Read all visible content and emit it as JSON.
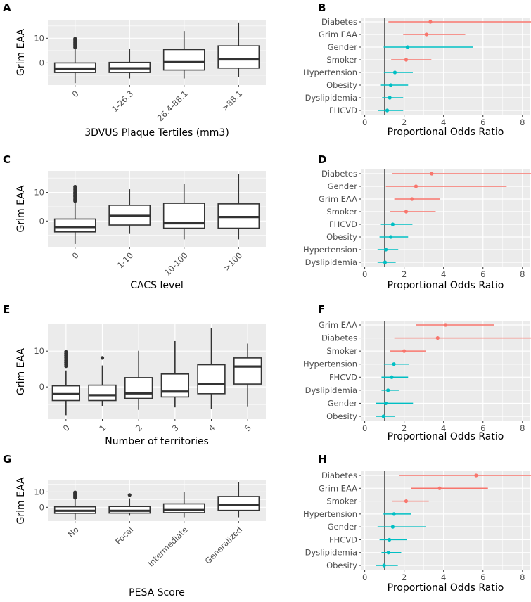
{
  "colors": {
    "significant": "#F8766D",
    "nonsignificant": "#00BFC4",
    "panel_bg": "#EBEBEB",
    "box_stroke": "#333333",
    "reference_line": "#555555"
  },
  "chart_data": [
    {
      "panel": "A",
      "type": "box",
      "ylabel": "Grim EAA",
      "xlabel": "3DVUS Plaque Tertiles (mm3)",
      "yticks": [
        0,
        10
      ],
      "ylim": [
        -9,
        17.5
      ],
      "label_rotation": 45,
      "categories": [
        "0",
        "1-26.3",
        "26.4-88.1",
        ">88.1"
      ],
      "boxes": [
        {
          "min": -8.2,
          "q1": -3.9,
          "median": -2.3,
          "q3": 0,
          "max": 5.7,
          "outliers": [
            6.3,
            6.8,
            7.3,
            7.8,
            8.3,
            8.8,
            9.3,
            9.8
          ]
        },
        {
          "min": -6.3,
          "q1": -3.9,
          "median": -2.2,
          "q3": 0.2,
          "max": 5.7,
          "outliers": []
        },
        {
          "min": -6.3,
          "q1": -2.9,
          "median": 0.3,
          "q3": 5.4,
          "max": 12.9,
          "outliers": []
        },
        {
          "min": -5.8,
          "q1": -2.1,
          "median": 1.4,
          "q3": 6.9,
          "max": 16.4,
          "outliers": []
        }
      ]
    },
    {
      "panel": "B",
      "type": "forest",
      "xlabel": "Proportional Odds Ratio",
      "xticks": [
        0,
        2,
        4,
        6,
        8
      ],
      "xlim": [
        -0.2,
        8.4
      ],
      "reference": 1,
      "rows": [
        {
          "label": "Diabetes",
          "or": 3.33,
          "lo": 1.2,
          "hi": 9.5,
          "sig": true
        },
        {
          "label": "Grim EAA",
          "or": 3.13,
          "lo": 1.95,
          "hi": 5.1,
          "sig": true
        },
        {
          "label": "Gender",
          "or": 2.17,
          "lo": 0.96,
          "hi": 5.48,
          "sig": false
        },
        {
          "label": "Smoker",
          "or": 2.1,
          "lo": 1.34,
          "hi": 3.38,
          "sig": true
        },
        {
          "label": "Hypertension",
          "or": 1.53,
          "lo": 0.97,
          "hi": 2.44,
          "sig": false
        },
        {
          "label": "Obesity",
          "or": 1.32,
          "lo": 0.82,
          "hi": 2.2,
          "sig": false
        },
        {
          "label": "Dyslipidemia",
          "or": 1.27,
          "lo": 0.88,
          "hi": 1.95,
          "sig": false
        },
        {
          "label": "FHCVD",
          "or": 1.14,
          "lo": 0.66,
          "hi": 1.95,
          "sig": false
        }
      ]
    },
    {
      "panel": "C",
      "type": "box",
      "ylabel": "Grim EAA",
      "xlabel": "CACS level",
      "yticks": [
        0,
        10
      ],
      "ylim": [
        -9,
        17.5
      ],
      "label_rotation": 45,
      "categories": [
        "0",
        "1-10",
        "10-100",
        ">100"
      ],
      "boxes": [
        {
          "min": -8.0,
          "q1": -3.8,
          "median": -2.1,
          "q3": 0.7,
          "max": 6.4,
          "outliers": [
            7.0,
            7.5,
            8.0,
            8.5,
            9.0,
            9.5,
            10.0,
            10.5,
            11.0,
            11.5,
            12.0
          ]
        },
        {
          "min": -4.5,
          "q1": -1.4,
          "median": 1.8,
          "q3": 5.5,
          "max": 11.1,
          "outliers": []
        },
        {
          "min": -6.4,
          "q1": -2.5,
          "median": -0.8,
          "q3": 6.2,
          "max": 13.0,
          "outliers": []
        },
        {
          "min": -6.4,
          "q1": -2.5,
          "median": 1.4,
          "q3": 6.0,
          "max": 16.5,
          "outliers": []
        }
      ]
    },
    {
      "panel": "D",
      "type": "forest",
      "xlabel": "Proportional Odds Ratio",
      "xticks": [
        0,
        2,
        4,
        6,
        8
      ],
      "xlim": [
        -0.2,
        8.4
      ],
      "reference": 1,
      "rows": [
        {
          "label": "Diabetes",
          "or": 3.4,
          "lo": 1.4,
          "hi": 9.5,
          "sig": true
        },
        {
          "label": "Gender",
          "or": 2.6,
          "lo": 1.07,
          "hi": 7.2,
          "sig": true
        },
        {
          "label": "Grim EAA",
          "or": 2.4,
          "lo": 1.5,
          "hi": 3.8,
          "sig": true
        },
        {
          "label": "Smoker",
          "or": 2.1,
          "lo": 1.3,
          "hi": 3.6,
          "sig": true
        },
        {
          "label": "FHCVD",
          "or": 1.42,
          "lo": 0.82,
          "hi": 2.42,
          "sig": false
        },
        {
          "label": "Obesity",
          "or": 1.32,
          "lo": 0.75,
          "hi": 2.2,
          "sig": false
        },
        {
          "label": "Hypertension",
          "or": 1.07,
          "lo": 0.65,
          "hi": 1.7,
          "sig": false
        },
        {
          "label": "Dyslipidemia",
          "or": 1.03,
          "lo": 0.65,
          "hi": 1.57,
          "sig": false
        }
      ]
    },
    {
      "panel": "E",
      "type": "box",
      "ylabel": "Grim EAA",
      "xlabel": "Number of territories",
      "yticks": [
        0,
        10
      ],
      "ylim": [
        -9,
        17.5
      ],
      "label_rotation": 45,
      "categories": [
        "0",
        "1",
        "2",
        "3",
        "4",
        "5"
      ],
      "boxes": [
        {
          "min": -7.9,
          "q1": -3.8,
          "median": -2.0,
          "q3": 0.3,
          "max": 4.6,
          "outliers": [
            5.8,
            6.3,
            6.8,
            7.3,
            7.8,
            8.3,
            8.8,
            9.3,
            9.8
          ]
        },
        {
          "min": -5.4,
          "q1": -3.8,
          "median": -2.3,
          "q3": 0.5,
          "max": 6.0,
          "outliers": [
            8.1
          ]
        },
        {
          "min": -6.4,
          "q1": -3.2,
          "median": -1.8,
          "q3": 2.6,
          "max": 10.1,
          "outliers": []
        },
        {
          "min": -5.7,
          "q1": -2.8,
          "median": -1.3,
          "q3": 3.6,
          "max": 12.8,
          "outliers": []
        },
        {
          "min": -6.2,
          "q1": -1.9,
          "median": 0.8,
          "q3": 6.2,
          "max": 16.4,
          "outliers": []
        },
        {
          "min": -5.6,
          "q1": 0.8,
          "median": 5.7,
          "q3": 8.1,
          "max": 12.1,
          "outliers": []
        }
      ]
    },
    {
      "panel": "F",
      "type": "forest",
      "xlabel": "Proportional Odds Ratio",
      "xticks": [
        0,
        2,
        4,
        6,
        8
      ],
      "xlim": [
        -0.2,
        8.4
      ],
      "reference": 1,
      "rows": [
        {
          "label": "Grim EAA",
          "or": 4.1,
          "lo": 2.6,
          "hi": 6.55,
          "sig": true
        },
        {
          "label": "Diabetes",
          "or": 3.7,
          "lo": 1.5,
          "hi": 9.5,
          "sig": true
        },
        {
          "label": "Smoker",
          "or": 2.0,
          "lo": 1.3,
          "hi": 3.1,
          "sig": true
        },
        {
          "label": "Hypertension",
          "or": 1.48,
          "lo": 0.97,
          "hi": 2.25,
          "sig": false
        },
        {
          "label": "FHCVD",
          "or": 1.37,
          "lo": 0.85,
          "hi": 2.2,
          "sig": false
        },
        {
          "label": "Dyslipidemia",
          "or": 1.18,
          "lo": 0.85,
          "hi": 1.75,
          "sig": false
        },
        {
          "label": "Gender",
          "or": 1.07,
          "lo": 0.55,
          "hi": 2.45,
          "sig": false
        },
        {
          "label": "Obesity",
          "or": 0.95,
          "lo": 0.55,
          "hi": 1.55,
          "sig": false
        }
      ]
    },
    {
      "panel": "G",
      "type": "box",
      "ylabel": "Grim EAA",
      "xlabel": "PESA Score",
      "yticks": [
        0,
        10
      ],
      "ylim": [
        -9,
        17.5
      ],
      "label_rotation": 45,
      "categories": [
        "No",
        "Focal",
        "Intermediate",
        "Generalized"
      ],
      "boxes": [
        {
          "min": -8.0,
          "q1": -3.9,
          "median": -2.3,
          "q3": 0.3,
          "max": 5.6,
          "outliers": [
            6.2,
            6.7,
            7.2,
            7.7,
            8.2,
            8.7,
            9.2,
            9.7
          ]
        },
        {
          "min": -5.5,
          "q1": -3.8,
          "median": -2.3,
          "q3": 0.5,
          "max": 5.8,
          "outliers": [
            8.0
          ]
        },
        {
          "min": -6.5,
          "q1": -3.5,
          "median": -1.8,
          "q3": 2.2,
          "max": 10.0,
          "outliers": []
        },
        {
          "min": -6.5,
          "q1": -2.0,
          "median": 1.4,
          "q3": 7.0,
          "max": 16.4,
          "outliers": []
        }
      ]
    },
    {
      "panel": "H",
      "type": "forest",
      "xlabel": "Proportional Odds Ratio",
      "xticks": [
        0,
        2,
        4,
        6,
        8
      ],
      "xlim": [
        -0.2,
        8.4
      ],
      "reference": 1,
      "rows": [
        {
          "label": "Diabetes",
          "or": 5.65,
          "lo": 1.75,
          "hi": 9.5,
          "sig": true
        },
        {
          "label": "Grim EAA",
          "or": 3.8,
          "lo": 2.35,
          "hi": 6.25,
          "sig": true
        },
        {
          "label": "Smoker",
          "or": 2.1,
          "lo": 1.4,
          "hi": 3.25,
          "sig": true
        },
        {
          "label": "Hypertension",
          "or": 1.48,
          "lo": 0.95,
          "hi": 2.35,
          "sig": false
        },
        {
          "label": "Gender",
          "or": 1.42,
          "lo": 0.65,
          "hi": 3.1,
          "sig": false
        },
        {
          "label": "FHCVD",
          "or": 1.25,
          "lo": 0.75,
          "hi": 2.15,
          "sig": false
        },
        {
          "label": "Dyslipidemia",
          "or": 1.2,
          "lo": 0.85,
          "hi": 1.85,
          "sig": false
        },
        {
          "label": "Obesity",
          "or": 0.98,
          "lo": 0.55,
          "hi": 1.68,
          "sig": false
        }
      ]
    }
  ]
}
